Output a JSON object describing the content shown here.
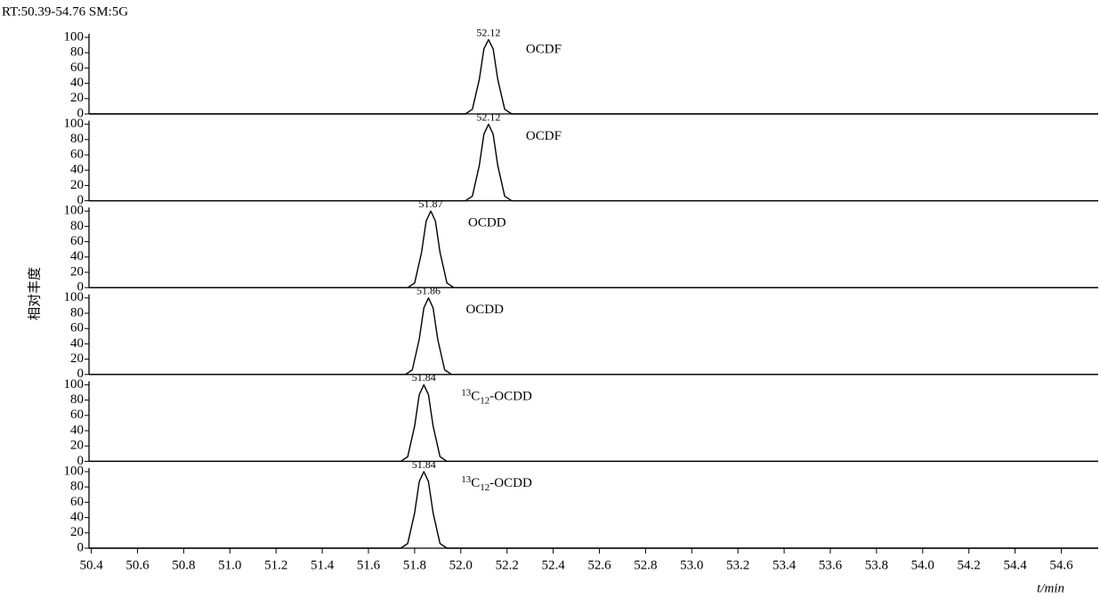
{
  "header": "RT:50.39-54.76 SM:5G",
  "y_label": "相对丰度",
  "chart_data": [
    {
      "type": "line",
      "color": "#000000",
      "xlim": [
        50.39,
        54.76
      ],
      "ylim": [
        0,
        100
      ],
      "yticks": [
        0,
        20,
        40,
        60,
        80,
        100
      ],
      "x": [
        50.39,
        52.02,
        52.05,
        52.08,
        52.1,
        52.12,
        52.14,
        52.16,
        52.19,
        52.22,
        54.76
      ],
      "values": [
        0,
        0,
        6,
        45,
        85,
        97,
        85,
        45,
        6,
        0,
        0
      ],
      "peak_label": 52.12,
      "label": "OCDF"
    },
    {
      "type": "line",
      "color": "#000000",
      "xlim": [
        50.39,
        54.76
      ],
      "ylim": [
        0,
        100
      ],
      "yticks": [
        0,
        20,
        40,
        60,
        80,
        100
      ],
      "x": [
        50.39,
        52.02,
        52.05,
        52.08,
        52.1,
        52.12,
        52.14,
        52.16,
        52.19,
        52.22,
        54.76
      ],
      "values": [
        0,
        0,
        6,
        46,
        87,
        100,
        87,
        46,
        6,
        0,
        0
      ],
      "peak_label": 52.12,
      "label": "OCDF"
    },
    {
      "type": "line",
      "color": "#000000",
      "xlim": [
        50.39,
        54.76
      ],
      "ylim": [
        0,
        100
      ],
      "yticks": [
        0,
        20,
        40,
        60,
        80,
        100
      ],
      "x": [
        50.39,
        51.77,
        51.8,
        51.83,
        51.85,
        51.87,
        51.89,
        51.91,
        51.94,
        51.97,
        54.76
      ],
      "values": [
        0,
        0,
        6,
        46,
        87,
        100,
        87,
        46,
        6,
        0,
        0
      ],
      "peak_label": 51.87,
      "label": "OCDD"
    },
    {
      "type": "line",
      "color": "#000000",
      "xlim": [
        50.39,
        54.76
      ],
      "ylim": [
        0,
        100
      ],
      "yticks": [
        0,
        20,
        40,
        60,
        80,
        100
      ],
      "x": [
        50.39,
        51.76,
        51.79,
        51.82,
        51.84,
        51.86,
        51.88,
        51.9,
        51.93,
        51.96,
        54.76
      ],
      "values": [
        0,
        0,
        6,
        46,
        87,
        100,
        87,
        46,
        6,
        0,
        0
      ],
      "peak_label": 51.86,
      "label": "OCDD"
    },
    {
      "type": "line",
      "color": "#000000",
      "xlim": [
        50.39,
        54.76
      ],
      "ylim": [
        0,
        100
      ],
      "yticks": [
        0,
        20,
        40,
        60,
        80,
        100
      ],
      "x": [
        50.39,
        51.74,
        51.77,
        51.8,
        51.82,
        51.84,
        51.86,
        51.88,
        51.91,
        51.94,
        54.76
      ],
      "values": [
        0,
        0,
        6,
        46,
        87,
        100,
        87,
        46,
        6,
        0,
        0
      ],
      "peak_label": 51.84,
      "label": {
        "sup": "13",
        "base": "C",
        "sub": "12",
        "rest": "-OCDD"
      }
    },
    {
      "type": "line",
      "color": "#000000",
      "xlim": [
        50.39,
        54.76
      ],
      "ylim": [
        0,
        100
      ],
      "yticks": [
        0,
        20,
        40,
        60,
        80,
        100
      ],
      "x": [
        50.39,
        51.74,
        51.77,
        51.8,
        51.82,
        51.84,
        51.86,
        51.88,
        51.91,
        51.94,
        54.76
      ],
      "values": [
        0,
        0,
        6,
        46,
        87,
        100,
        87,
        46,
        6,
        0,
        0
      ],
      "peak_label": 51.84,
      "label": {
        "sup": "13",
        "base": "C",
        "sub": "12",
        "rest": "-OCDD"
      },
      "xticks": [
        50.4,
        50.6,
        50.8,
        {
          "value": 51,
          "label": "51.0"
        },
        51.2,
        51.4,
        51.6,
        51.8,
        {
          "value": 52,
          "label": "52.0"
        },
        52.2,
        52.4,
        52.6,
        52.8,
        {
          "value": 53,
          "label": "53.0"
        },
        53.2,
        53.4,
        53.6,
        53.8,
        {
          "value": 54,
          "label": "54.0"
        },
        54.2,
        54.4,
        54.6
      ],
      "x_label": "t/min"
    }
  ]
}
